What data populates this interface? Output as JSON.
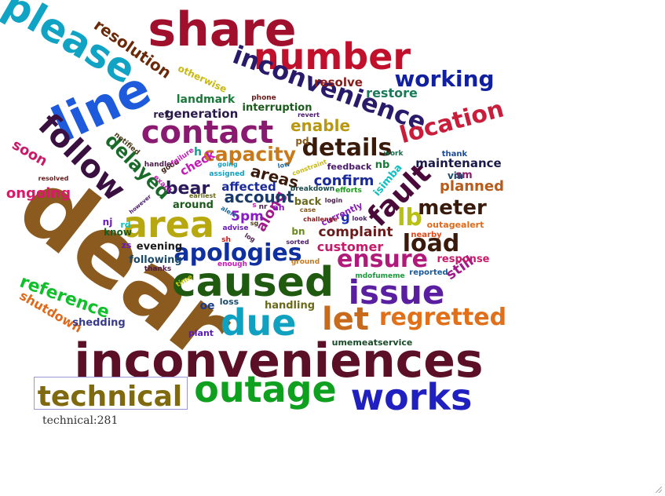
{
  "tooltip": {
    "word": "technical",
    "count": 281,
    "text": "technical:281"
  },
  "words": [
    {
      "text": "dear",
      "color": "#8b5a1e"
    },
    {
      "text": "inconveniences",
      "color": "#5c1028"
    },
    {
      "text": "share",
      "color": "#a0102c"
    },
    {
      "text": "caused",
      "color": "#1f5a10"
    },
    {
      "text": "please",
      "color": "#10a3c4"
    },
    {
      "text": "line",
      "color": "#1e5adc"
    },
    {
      "text": "outage",
      "color": "#10a020"
    },
    {
      "text": "works",
      "color": "#2020c0"
    },
    {
      "text": "number",
      "color": "#c0102c"
    },
    {
      "text": "due",
      "color": "#10a0c0"
    },
    {
      "text": "area",
      "color": "#b8a810"
    },
    {
      "text": "issue",
      "color": "#5a1ea0"
    },
    {
      "text": "technical",
      "color": "#806a10"
    },
    {
      "text": "contact",
      "color": "#8a1a70"
    },
    {
      "text": "follow",
      "color": "#3a1040"
    },
    {
      "text": "inconvenience",
      "color": "#2a1a6a"
    },
    {
      "text": "let",
      "color": "#c86a1c"
    },
    {
      "text": "regretted",
      "color": "#e0701a"
    },
    {
      "text": "apologies",
      "color": "#1030a0"
    },
    {
      "text": "details",
      "color": "#3a1a0a"
    },
    {
      "text": "location",
      "color": "#c81e3c"
    },
    {
      "text": "fault",
      "color": "#4a0a3a"
    },
    {
      "text": "ensure",
      "color": "#b01a7a"
    },
    {
      "text": "working",
      "color": "#1020a0"
    },
    {
      "text": "load",
      "color": "#3a1a0a"
    },
    {
      "text": "capacity",
      "color": "#c87a1a"
    },
    {
      "text": "delayed",
      "color": "#1a6a2a"
    },
    {
      "text": "lb",
      "color": "#b8c010"
    },
    {
      "text": "meter",
      "color": "#3a1a0a"
    },
    {
      "text": "reference",
      "color": "#10c02a"
    },
    {
      "text": "resolution",
      "color": "#6a2a0a"
    },
    {
      "text": "bear",
      "color": "#2a1a5a"
    },
    {
      "text": "enable",
      "color": "#b89810"
    },
    {
      "text": "along",
      "color": "#a01a8a"
    },
    {
      "text": "soon",
      "color": "#c81a6a"
    },
    {
      "text": "account",
      "color": "#1a3a6a"
    },
    {
      "text": "areas",
      "color": "#3a1a0a"
    },
    {
      "text": "confirm",
      "color": "#1a2a9a"
    },
    {
      "text": "planned",
      "color": "#b85a1a"
    },
    {
      "text": "ongoing",
      "color": "#d81a6a"
    },
    {
      "text": "complaint",
      "color": "#6a1a1a"
    },
    {
      "text": "maintenance",
      "color": "#1a1a4a"
    },
    {
      "text": "5pm",
      "color": "#8a1ac8"
    },
    {
      "text": "still",
      "color": "#a01a8a"
    },
    {
      "text": "customer",
      "color": "#c81a6a"
    },
    {
      "text": "shutdown",
      "color": "#e06a1a"
    },
    {
      "text": "restore",
      "color": "#1a7a5a"
    },
    {
      "text": "resolve",
      "color": "#8a1a1a"
    },
    {
      "text": "landmark",
      "color": "#1a7a3a"
    },
    {
      "text": "generation",
      "color": "#2a1a4a"
    },
    {
      "text": "affected",
      "color": "#1a2a9a"
    },
    {
      "text": "check",
      "color": "#c81ab8"
    },
    {
      "text": "interruption",
      "color": "#1a5a1a"
    },
    {
      "text": "otherwise",
      "color": "#c8b810"
    },
    {
      "text": "handling",
      "color": "#6a6a1a"
    },
    {
      "text": "shedding",
      "color": "#3a3a8a"
    },
    {
      "text": "following",
      "color": "#1a4a6a"
    },
    {
      "text": "evening",
      "color": "#1a1a1a"
    },
    {
      "text": "response",
      "color": "#c81a6a"
    },
    {
      "text": "around",
      "color": "#1a5a1a"
    },
    {
      "text": "isimba",
      "color": "#10c0c0"
    },
    {
      "text": "umemeatservice",
      "color": "#1a4a2a"
    },
    {
      "text": "ref",
      "color": "#2a1a4a"
    },
    {
      "text": "back",
      "color": "#6a6a1a"
    },
    {
      "text": "sm",
      "color": "#8a1a6a"
    },
    {
      "text": "nb",
      "color": "#1a7a3a"
    },
    {
      "text": "via",
      "color": "#1a4a6a"
    },
    {
      "text": "know",
      "color": "#1a5a1a"
    },
    {
      "text": "nj",
      "color": "#6a1ab8"
    },
    {
      "text": "oe",
      "color": "#1a3a8a"
    },
    {
      "text": "loss",
      "color": "#1a4a6a"
    },
    {
      "text": "zs",
      "color": "#6a1ab8"
    },
    {
      "text": "plant",
      "color": "#5a1ab8"
    },
    {
      "text": "g",
      "color": "#1a2ab8"
    },
    {
      "text": "bn",
      "color": "#6a8a1a"
    },
    {
      "text": "h",
      "color": "#1a9a8a"
    },
    {
      "text": "pd",
      "color": "#8a5a1a"
    },
    {
      "text": "rd",
      "color": "#10c0c0"
    },
    {
      "text": "outagealert",
      "color": "#e06a1a"
    },
    {
      "text": "currently",
      "color": "#8a1ab8"
    },
    {
      "text": "feedback",
      "color": "#4a1a6a"
    },
    {
      "text": "nearby",
      "color": "#e04a1a"
    },
    {
      "text": "reported",
      "color": "#1a5a9a"
    },
    {
      "text": "mdofumeme",
      "color": "#1a9a3a"
    },
    {
      "text": "thank",
      "color": "#1a4a9a"
    },
    {
      "text": "phone",
      "color": "#6a1a1a"
    },
    {
      "text": "revert",
      "color": "#4a1a6a"
    },
    {
      "text": "work",
      "color": "#1a6a4a"
    },
    {
      "text": "notified",
      "color": "#4a3a1a"
    },
    {
      "text": "good",
      "color": "#3a1a0a"
    },
    {
      "text": "failure",
      "color": "#c81ab8"
    },
    {
      "text": "handle",
      "color": "#4a1a4a"
    },
    {
      "text": "assigned",
      "color": "#10a0c0"
    },
    {
      "text": "going",
      "color": "#10a0c0"
    },
    {
      "text": "exact",
      "color": "#c81ab8"
    },
    {
      "text": "resolved",
      "color": "#6a1a1a"
    },
    {
      "text": "however",
      "color": "#4a1a6a"
    },
    {
      "text": "earliest",
      "color": "#6a6a1a"
    },
    {
      "text": "alert",
      "color": "#1a6a9a"
    },
    {
      "text": "breakdown",
      "color": "#1a4a4a"
    },
    {
      "text": "efforts",
      "color": "#1a9a1a"
    },
    {
      "text": "constraint",
      "color": "#c8b810"
    },
    {
      "text": "login",
      "color": "#4a1a4a"
    },
    {
      "text": "challenge",
      "color": "#8a1a1a"
    },
    {
      "text": "case",
      "color": "#8a5a1a"
    },
    {
      "text": "look",
      "color": "#4a1a6a"
    },
    {
      "text": "low",
      "color": "#1a6a9a"
    },
    {
      "text": "sorted",
      "color": "#4a1a6a"
    },
    {
      "text": "ground",
      "color": "#c87a1a"
    },
    {
      "text": "advise",
      "color": "#6a1ab8"
    },
    {
      "text": "log",
      "color": "#4a1a4a"
    },
    {
      "text": "sh",
      "color": "#c81a1a"
    },
    {
      "text": "enough",
      "color": "#c81ab8"
    },
    {
      "text": "thanks",
      "color": "#4a1a4a"
    },
    {
      "text": "time",
      "color": "#c8c810"
    },
    {
      "text": "s",
      "color": "#c81ab8"
    },
    {
      "text": "nr",
      "color": "#4a1a4a"
    },
    {
      "text": "ah",
      "color": "#8a1ab8"
    },
    {
      "text": "sg",
      "color": "#4a3a1a"
    }
  ]
}
